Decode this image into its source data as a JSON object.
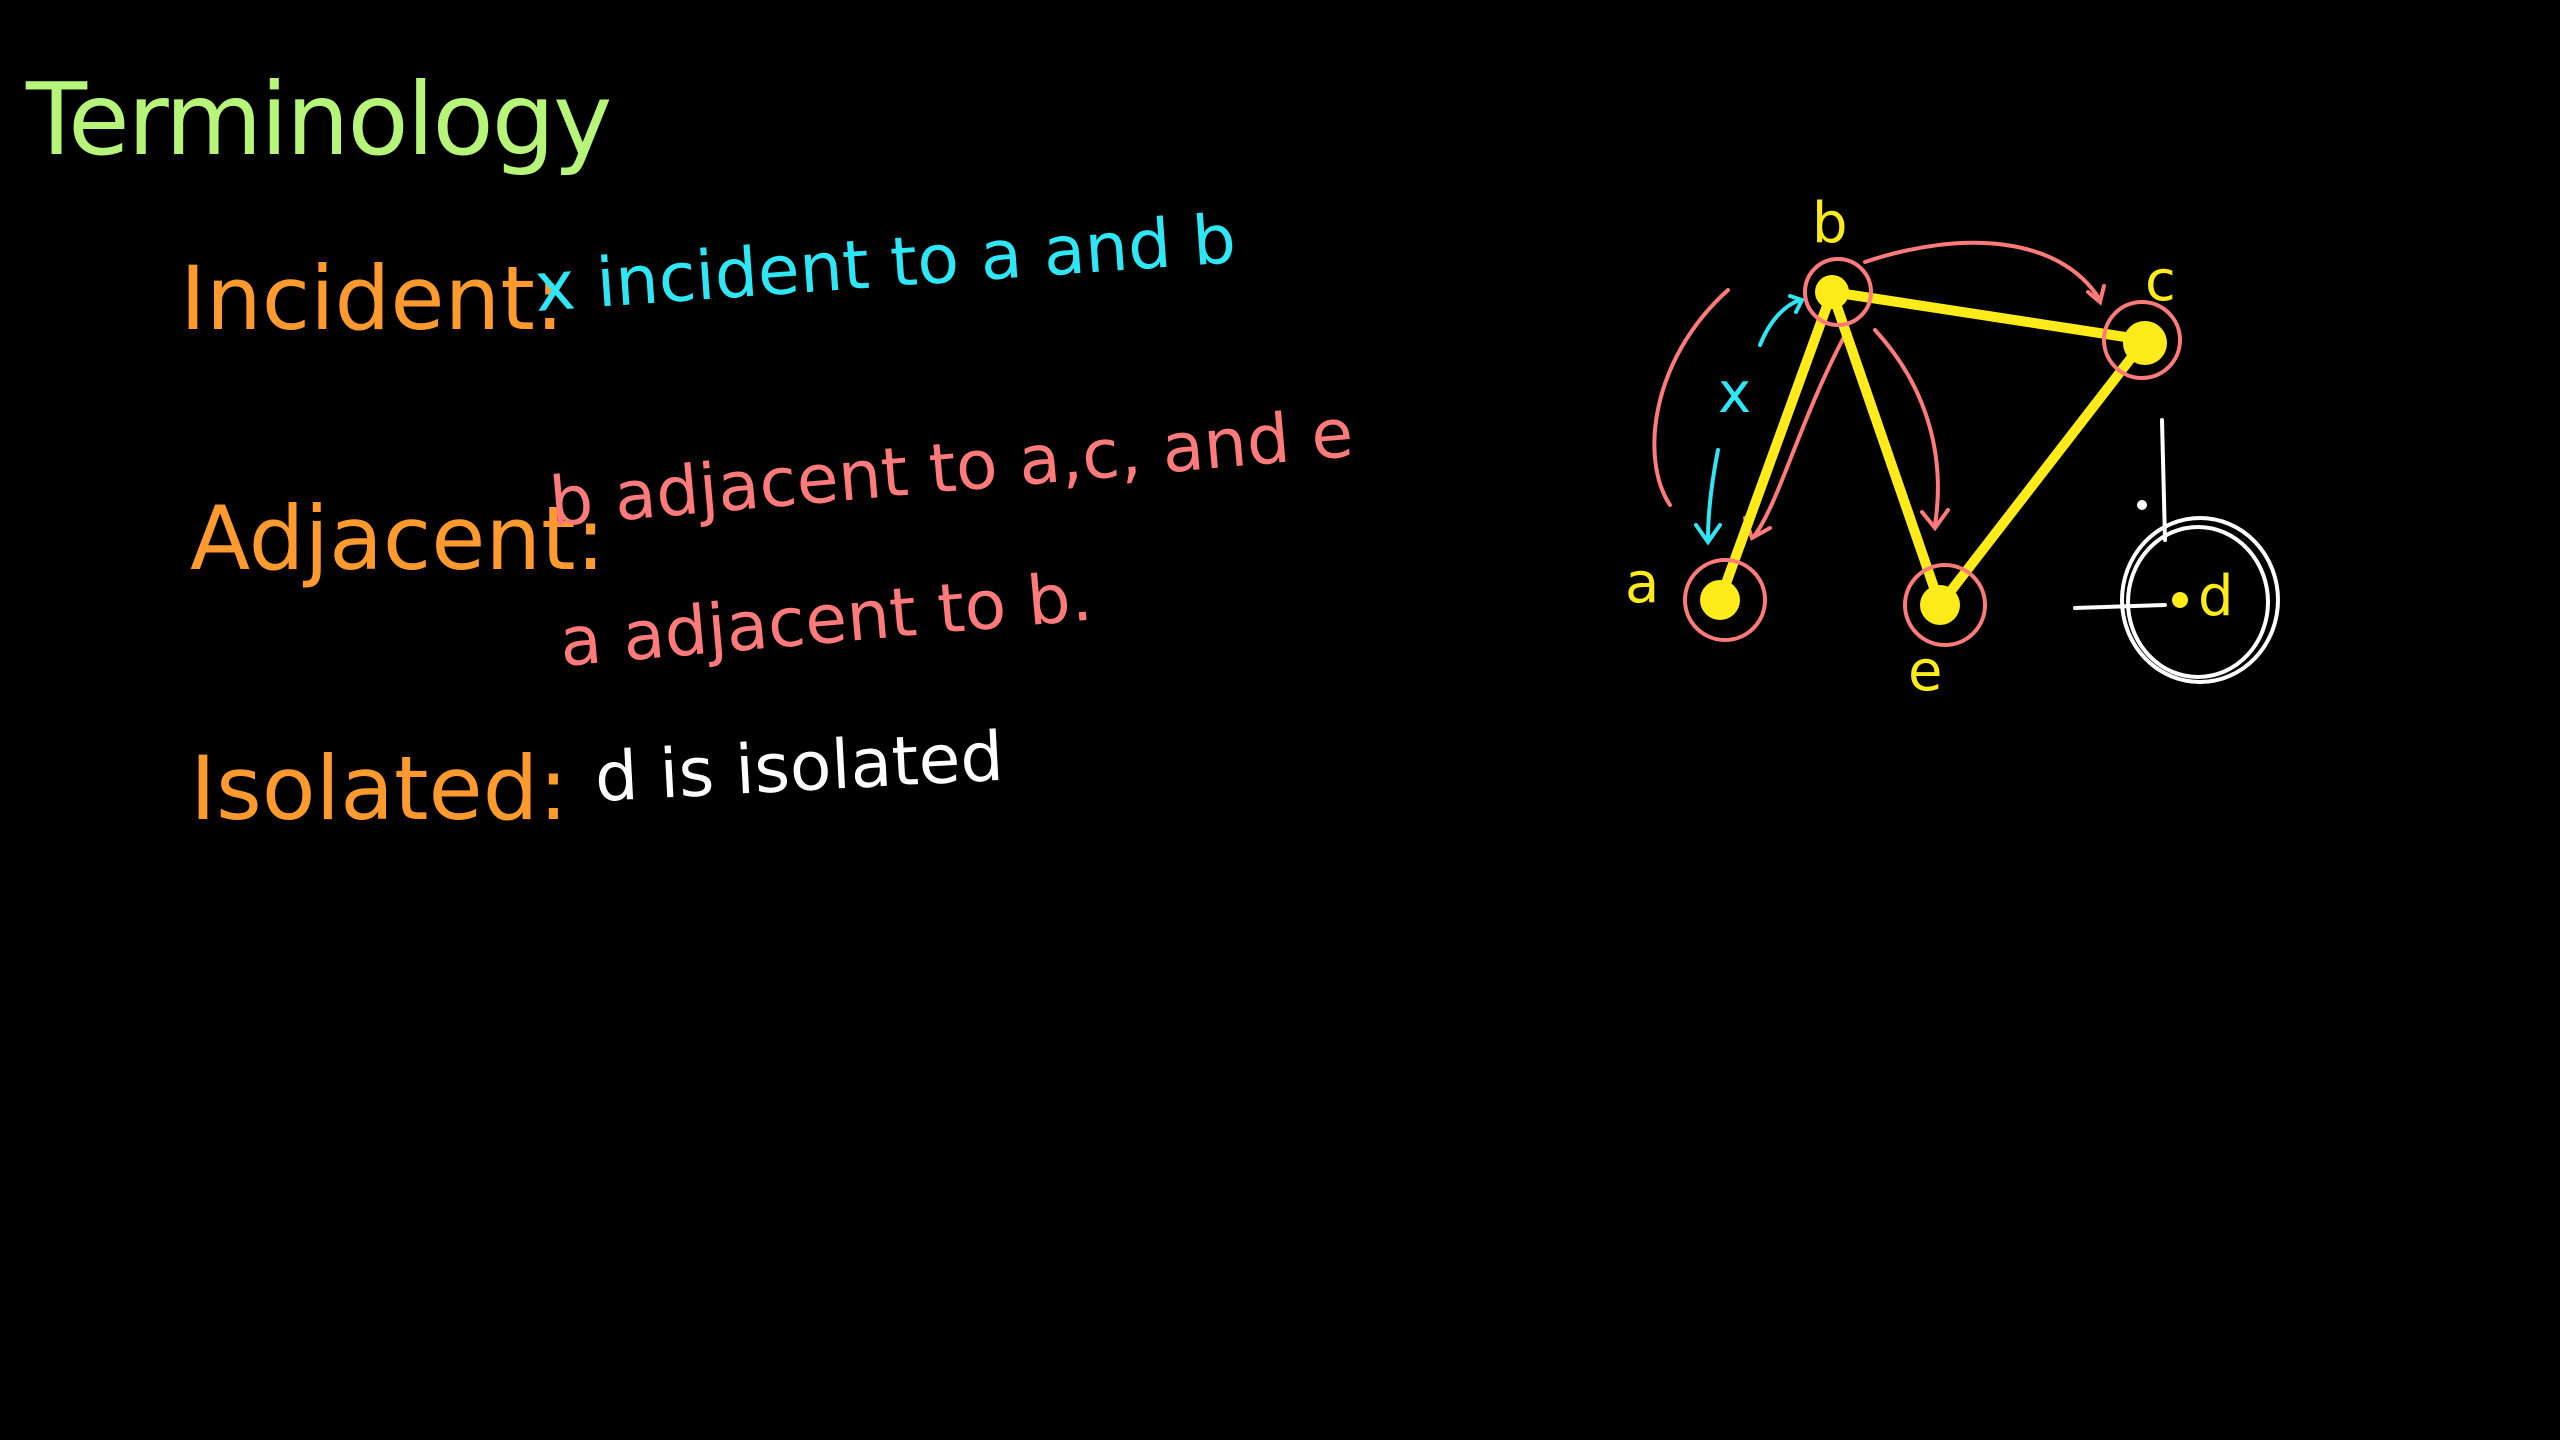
{
  "colors": {
    "background": "#000000",
    "title": "#b6f57a",
    "term": "#ff9a2e",
    "incident_text": "#2fe6f5",
    "adjacent_text": "#ff7b7b",
    "isolated_text": "#ffffff",
    "graph_edge": "#ffeb1a",
    "highlight_ring": "#ff7b7b",
    "isolated_ring": "#ffffff"
  },
  "title": "Terminology",
  "definitions": {
    "incident": {
      "term": "Incident:",
      "text": "x incident to a and b"
    },
    "adjacent": {
      "term": "Adjacent:",
      "line1": "b adjacent to a,c, and e",
      "line2": "a adjacent to b."
    },
    "isolated": {
      "term": "Isolated:",
      "text": "d is isolated"
    }
  },
  "graph": {
    "vertices": [
      "a",
      "b",
      "c",
      "d",
      "e"
    ],
    "edges": [
      [
        "a",
        "b"
      ],
      [
        "b",
        "c"
      ],
      [
        "b",
        "e"
      ],
      [
        "c",
        "e"
      ]
    ],
    "edge_label": "x",
    "labels": {
      "a": "a",
      "b": "b",
      "c": "c",
      "d": "d",
      "e": "e",
      "x": "x"
    }
  }
}
